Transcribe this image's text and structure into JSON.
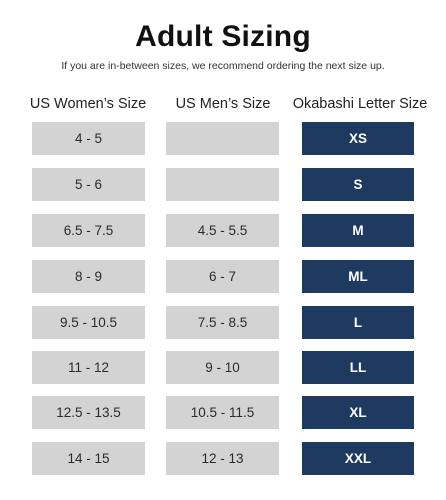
{
  "title": "Adult Sizing",
  "subtitle": "If you are in-between sizes, we recommend ordering the next size up.",
  "columns": {
    "women": "US Women’s Size",
    "men": "US Men’s Size",
    "letter": "Okabashi Letter Size"
  },
  "colors": {
    "grey_cell": "#d3d3d4",
    "navy_cell": "#1f3a60"
  },
  "rows": [
    {
      "women": "4 - 5",
      "men": "",
      "letter": "XS"
    },
    {
      "women": "5 - 6",
      "men": "",
      "letter": "S"
    },
    {
      "women": "6.5 - 7.5",
      "men": "4.5 - 5.5",
      "letter": "M"
    },
    {
      "women": "8 - 9",
      "men": "6 - 7",
      "letter": "ML"
    },
    {
      "women": "9.5 - 10.5",
      "men": "7.5 - 8.5",
      "letter": "L"
    },
    {
      "women": "11 - 12",
      "men": "9 - 10",
      "letter": "LL"
    },
    {
      "women": "12.5 - 13.5",
      "men": "10.5 - 11.5",
      "letter": "XL"
    },
    {
      "women": "14 - 15",
      "men": "12 - 13",
      "letter": "XXL"
    }
  ]
}
